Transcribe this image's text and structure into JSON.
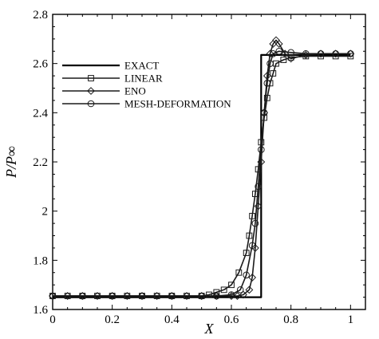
{
  "chart_data": {
    "type": "line",
    "xlabel": "X",
    "ylabel": "P/P∞",
    "xlim": [
      0,
      1.05
    ],
    "ylim": [
      1.6,
      2.8
    ],
    "xticks": [
      0,
      0.2,
      0.4,
      0.6,
      0.8,
      1
    ],
    "xtick_labels": [
      "0",
      "0.2",
      "0.4",
      "0.6",
      "0.8",
      "1"
    ],
    "yticks": [
      1.6,
      1.8,
      2,
      2.2,
      2.4,
      2.6,
      2.8
    ],
    "ytick_labels": [
      "1.6",
      "1.8",
      "2",
      "2.2",
      "2.4",
      "2.6",
      "2.8"
    ],
    "grid": false,
    "legend_position": "top-left",
    "series": [
      {
        "name": "EXACT",
        "marker": "none",
        "x": [
          0,
          0.7,
          0.7,
          1.0
        ],
        "y": [
          1.65,
          1.65,
          2.635,
          2.635
        ]
      },
      {
        "name": "LINEAR",
        "marker": "square",
        "x": [
          0,
          0.05,
          0.1,
          0.15,
          0.2,
          0.25,
          0.3,
          0.35,
          0.4,
          0.45,
          0.5,
          0.525,
          0.55,
          0.575,
          0.6,
          0.625,
          0.65,
          0.66,
          0.67,
          0.68,
          0.69,
          0.7,
          0.71,
          0.72,
          0.73,
          0.74,
          0.75,
          0.775,
          0.8,
          0.85,
          0.9,
          0.95,
          1.0
        ],
        "y": [
          1.655,
          1.655,
          1.655,
          1.655,
          1.655,
          1.655,
          1.655,
          1.655,
          1.655,
          1.655,
          1.655,
          1.66,
          1.67,
          1.68,
          1.7,
          1.75,
          1.83,
          1.9,
          1.98,
          2.07,
          2.17,
          2.28,
          2.38,
          2.46,
          2.52,
          2.56,
          2.6,
          2.615,
          2.625,
          2.63,
          2.63,
          2.63,
          2.63
        ]
      },
      {
        "name": "ENO",
        "marker": "diamond",
        "x": [
          0,
          0.05,
          0.1,
          0.15,
          0.2,
          0.25,
          0.3,
          0.35,
          0.4,
          0.45,
          0.5,
          0.55,
          0.6,
          0.62,
          0.64,
          0.66,
          0.67,
          0.68,
          0.69,
          0.7,
          0.71,
          0.72,
          0.73,
          0.74,
          0.75,
          0.76,
          0.78,
          0.8,
          0.85,
          0.9,
          0.95,
          1.0
        ],
        "y": [
          1.655,
          1.655,
          1.655,
          1.655,
          1.655,
          1.655,
          1.655,
          1.655,
          1.655,
          1.655,
          1.655,
          1.655,
          1.655,
          1.655,
          1.66,
          1.68,
          1.73,
          1.85,
          2.02,
          2.2,
          2.4,
          2.55,
          2.64,
          2.68,
          2.695,
          2.68,
          2.64,
          2.62,
          2.635,
          2.64,
          2.64,
          2.64
        ]
      },
      {
        "name": "MESH-DEFORMATION",
        "marker": "circle",
        "x": [
          0,
          0.1,
          0.2,
          0.3,
          0.4,
          0.5,
          0.55,
          0.6,
          0.63,
          0.65,
          0.67,
          0.68,
          0.69,
          0.7,
          0.71,
          0.72,
          0.73,
          0.74,
          0.76,
          0.8,
          0.85,
          0.9,
          0.95,
          1.0
        ],
        "y": [
          1.655,
          1.655,
          1.655,
          1.655,
          1.655,
          1.655,
          1.655,
          1.66,
          1.68,
          1.74,
          1.86,
          1.95,
          2.1,
          2.25,
          2.4,
          2.52,
          2.6,
          2.64,
          2.65,
          2.645,
          2.64,
          2.64,
          2.64,
          2.64
        ]
      }
    ]
  }
}
